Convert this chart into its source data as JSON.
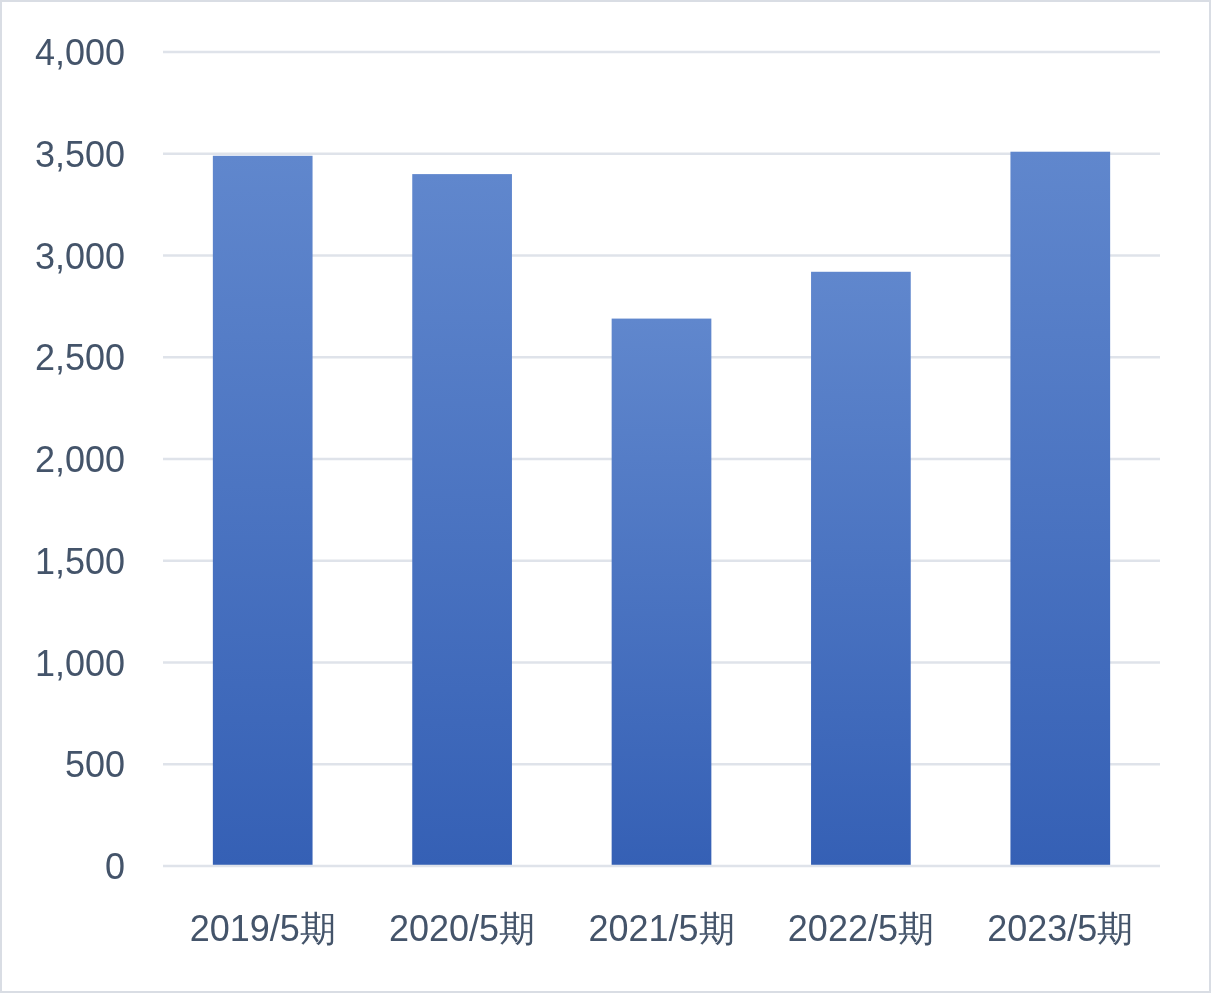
{
  "chart_data": {
    "type": "bar",
    "categories": [
      "2019/5期",
      "2020/5期",
      "2021/5期",
      "2022/5期",
      "2023/5期"
    ],
    "values": [
      3490,
      3400,
      2690,
      2920,
      3510
    ],
    "color": "#4472c4",
    "ylim": [
      0,
      4000
    ],
    "yticks": [
      0,
      500,
      {
        "value": 1000,
        "label": "1,000"
      },
      {
        "value": 1500,
        "label": "1,500"
      },
      {
        "value": 2000,
        "label": "2,000"
      },
      {
        "value": 2500,
        "label": "2,500"
      },
      {
        "value": 3000,
        "label": "3,000"
      },
      {
        "value": 3500,
        "label": "3,500"
      },
      {
        "value": 4000,
        "label": "4,000"
      }
    ],
    "grid": "y"
  }
}
